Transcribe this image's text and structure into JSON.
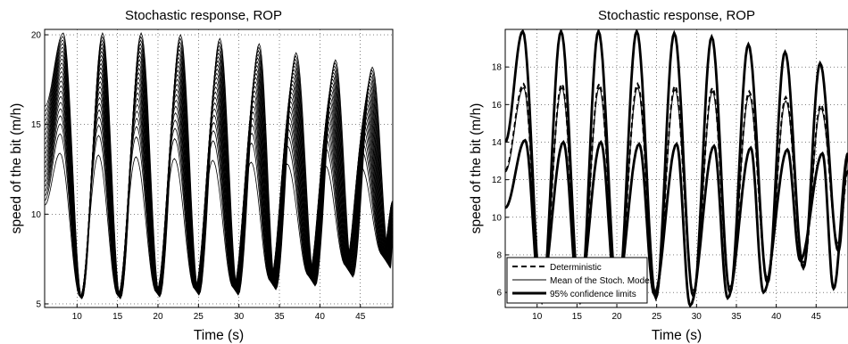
{
  "chart_data": [
    {
      "type": "line",
      "title": "Stochastic response, ROP",
      "xlabel": "Time (s)",
      "ylabel": "speed of the bit (m/h)",
      "xlim": [
        6,
        49
      ],
      "ylim": [
        4.8,
        20.3
      ],
      "xticks": [
        10,
        15,
        20,
        25,
        30,
        35,
        40,
        45
      ],
      "yticks": [
        5,
        10,
        15,
        20
      ],
      "grid": true,
      "description_series": [
        {
          "name": "",
          "style": "thin black, ensemble of realizations",
          "peaks_x": [
            8.1,
            12.9,
            17.6,
            22.4,
            27.2,
            32.0,
            36.5,
            41.3,
            45.8
          ],
          "peak_max": [
            20.1,
            20.1,
            20.1,
            20.0,
            19.8,
            19.5,
            19.0,
            18.6,
            18.2
          ],
          "lowest_realization_peaks": [
            13.4,
            13.3,
            13.2,
            13.1,
            13.0,
            12.9,
            12.8,
            12.7,
            12.6
          ],
          "minima_x": [
            10.5,
            15.2,
            20.0,
            24.8,
            29.6,
            34.2,
            39.0,
            43.6,
            48.2
          ],
          "minima_y": [
            5.3,
            5.3,
            5.4,
            5.5,
            5.5,
            5.8,
            6.0,
            6.5,
            7.0
          ],
          "realizations": 22
        }
      ]
    },
    {
      "type": "line",
      "title": "Stochastic response, ROP",
      "xlabel": "Time (s)",
      "ylabel": "speed of the bit (m/h)",
      "xlim": [
        6,
        49
      ],
      "ylim": [
        5.2,
        20.0
      ],
      "xticks": [
        10,
        15,
        20,
        25,
        30,
        35,
        40,
        45
      ],
      "yticks": [
        6,
        8,
        10,
        12,
        14,
        16,
        18
      ],
      "grid": true,
      "legend_position": "bottom-left",
      "series": [
        {
          "name": "Deterministic",
          "style": "dashed",
          "peaks_x": [
            8.3,
            13.1,
            17.8,
            22.6,
            27.3,
            32.0,
            36.6,
            41.2,
            45.6
          ],
          "peak_y": [
            17.1,
            17.1,
            17.1,
            17.1,
            17.0,
            16.9,
            16.7,
            16.4,
            16.0
          ],
          "minima_x": [
            10.6,
            15.4,
            20.1,
            24.9,
            29.6,
            34.2,
            38.9,
            43.4,
            47.8
          ],
          "minima_y": [
            5.6,
            5.6,
            5.7,
            5.8,
            5.9,
            6.1,
            6.6,
            7.4,
            8.4
          ]
        },
        {
          "name": "Mean of the Stoch. Model",
          "style": "thin solid",
          "peaks_x": [
            8.3,
            13.1,
            17.8,
            22.6,
            27.3,
            32.0,
            36.6,
            41.2,
            45.6
          ],
          "peak_y": [
            16.9,
            16.9,
            16.9,
            16.9,
            16.8,
            16.7,
            16.5,
            16.2,
            15.8
          ],
          "minima_x": [
            10.6,
            15.4,
            20.1,
            24.9,
            29.6,
            34.2,
            38.9,
            43.4,
            47.8
          ],
          "minima_y": [
            5.8,
            5.8,
            5.9,
            6.0,
            6.1,
            6.3,
            6.8,
            7.6,
            8.6
          ]
        },
        {
          "name": "95% confidence limits",
          "style": "thick solid, upper bound",
          "peaks_x": [
            8.2,
            13.0,
            17.7,
            22.5,
            27.2,
            31.9,
            36.5,
            41.1,
            45.5
          ],
          "peak_y": [
            19.9,
            19.9,
            19.9,
            19.9,
            19.8,
            19.6,
            19.2,
            18.8,
            18.2
          ],
          "minima_x": [
            10.6,
            15.4,
            20.1,
            24.9,
            29.6,
            34.2,
            38.9,
            43.4,
            47.8
          ],
          "minima_y": [
            5.5,
            5.5,
            5.6,
            5.7,
            5.8,
            6.0,
            6.5,
            7.3,
            8.2
          ]
        },
        {
          "name": "95% confidence limits",
          "style": "thick solid, lower bound",
          "peaks_x": [
            8.5,
            13.3,
            18.0,
            22.8,
            27.5,
            32.2,
            36.8,
            41.4,
            45.8
          ],
          "peak_y": [
            14.1,
            14.0,
            14.0,
            13.9,
            13.9,
            13.8,
            13.7,
            13.6,
            13.4
          ],
          "minima_x": [
            10.4,
            15.2,
            19.9,
            24.7,
            29.2,
            33.9,
            38.4,
            43.0,
            47.2
          ],
          "minima_y": [
            5.7,
            5.7,
            5.8,
            5.9,
            5.3,
            5.7,
            6.0,
            7.7,
            6.2
          ]
        }
      ]
    }
  ]
}
